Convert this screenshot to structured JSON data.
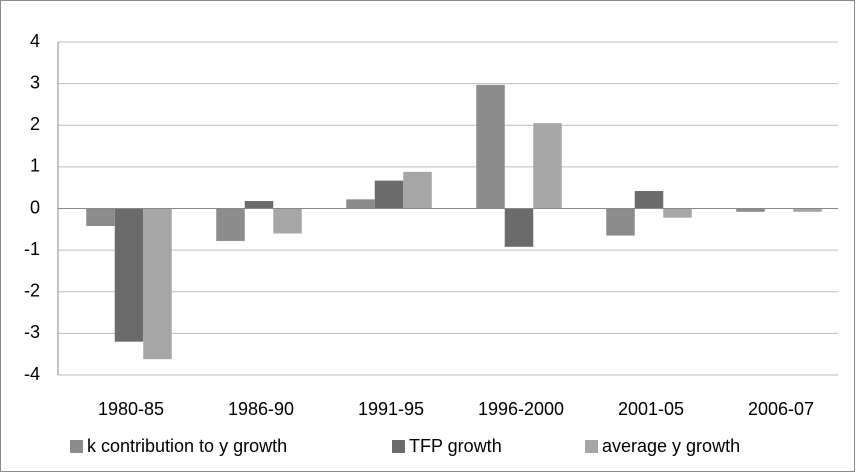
{
  "chart_data": {
    "type": "bar",
    "categories": [
      "1980-85",
      "1986-90",
      "1991-95",
      "1996-2000",
      "2001-05",
      "2006-07"
    ],
    "series": [
      {
        "name": "k contribution to y growth",
        "color": "#8c8c8c",
        "values": [
          -0.42,
          -0.78,
          0.22,
          2.97,
          -0.65,
          -0.08
        ]
      },
      {
        "name": "TFP growth",
        "color": "#6b6b6b",
        "values": [
          -3.2,
          0.18,
          0.67,
          -0.92,
          0.42,
          0
        ]
      },
      {
        "name": "average y growth",
        "color": "#a6a6a6",
        "values": [
          -3.62,
          -0.6,
          0.88,
          2.05,
          -0.22,
          -0.08
        ]
      }
    ],
    "ylim": [
      -4,
      4
    ],
    "yticks": [
      -4,
      -3,
      -2,
      -1,
      0,
      1,
      2,
      3,
      4
    ],
    "grid": true,
    "legend": "bottom"
  }
}
